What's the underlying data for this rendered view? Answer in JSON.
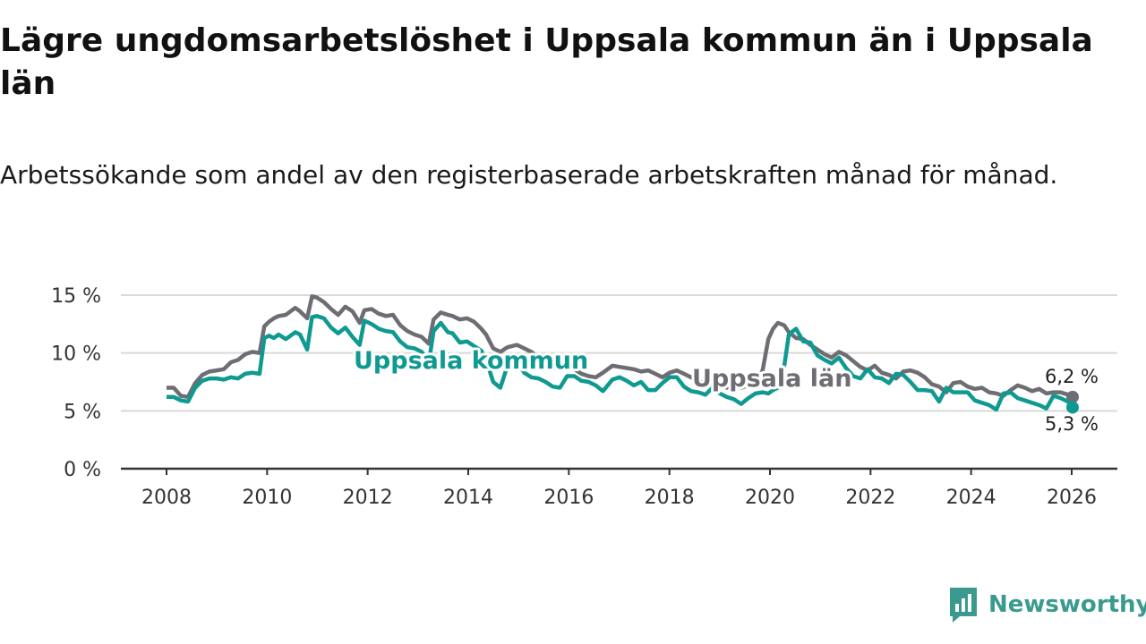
{
  "title": "Lägre ungdomsarbetslöshet i Uppsala kommun än i Uppsala län",
  "subtitle": "Arbetssökande som andel av den registerbaserade arbetskraften månad för månad.",
  "brand": {
    "name": "Newsworthy",
    "icon": "newsworthy-logo-icon",
    "color": "#3a9a8e"
  },
  "chart_data": {
    "type": "line",
    "title": "Lägre ungdomsarbetslöshet i Uppsala kommun än i Uppsala län",
    "xlabel": "",
    "ylabel": "",
    "xlim": [
      2007.1,
      2027.2
    ],
    "ylim": [
      0,
      15
    ],
    "yticks": [
      0,
      5,
      10,
      15
    ],
    "ytick_labels": [
      "0 %",
      "5 %",
      "10 %",
      "15 %"
    ],
    "xticks": [
      2008,
      2010,
      2012,
      2014,
      2016,
      2018,
      2020,
      2022,
      2024,
      2026
    ],
    "xtick_labels": [
      "2008",
      "2010",
      "2012",
      "2014",
      "2016",
      "2018",
      "2020",
      "2022",
      "2024",
      "2026"
    ],
    "grid": true,
    "series": [
      {
        "name": "Uppsala län",
        "label": "Uppsala län",
        "color": "#6e6d73",
        "end_label": "6,2 %",
        "points": [
          [
            2008.0,
            7.0
          ],
          [
            2008.15,
            7.0
          ],
          [
            2008.3,
            6.3
          ],
          [
            2008.45,
            6.2
          ],
          [
            2008.6,
            7.4
          ],
          [
            2008.75,
            8.1
          ],
          [
            2008.9,
            8.4
          ],
          [
            2009.05,
            8.5
          ],
          [
            2009.2,
            8.6
          ],
          [
            2009.35,
            9.2
          ],
          [
            2009.5,
            9.4
          ],
          [
            2009.65,
            9.9
          ],
          [
            2009.8,
            10.1
          ],
          [
            2009.95,
            10.0
          ],
          [
            2010.05,
            12.3
          ],
          [
            2010.15,
            12.7
          ],
          [
            2010.25,
            13.0
          ],
          [
            2010.35,
            13.2
          ],
          [
            2010.5,
            13.3
          ],
          [
            2010.6,
            13.6
          ],
          [
            2010.7,
            13.9
          ],
          [
            2010.8,
            13.6
          ],
          [
            2010.95,
            13.0
          ],
          [
            2011.05,
            14.9
          ],
          [
            2011.15,
            14.8
          ],
          [
            2011.3,
            14.4
          ],
          [
            2011.45,
            13.8
          ],
          [
            2011.6,
            13.3
          ],
          [
            2011.75,
            14.0
          ],
          [
            2011.9,
            13.6
          ],
          [
            2012.05,
            12.6
          ],
          [
            2012.15,
            13.7
          ],
          [
            2012.3,
            13.8
          ],
          [
            2012.45,
            13.4
          ],
          [
            2012.6,
            13.2
          ],
          [
            2012.75,
            13.3
          ],
          [
            2012.9,
            12.4
          ],
          [
            2013.05,
            11.9
          ],
          [
            2013.2,
            11.6
          ],
          [
            2013.35,
            11.4
          ],
          [
            2013.5,
            10.8
          ],
          [
            2013.6,
            12.9
          ],
          [
            2013.75,
            13.5
          ],
          [
            2013.9,
            13.3
          ],
          [
            2014.0,
            13.2
          ],
          [
            2014.15,
            12.9
          ],
          [
            2014.3,
            13.0
          ],
          [
            2014.45,
            12.7
          ],
          [
            2014.6,
            12.1
          ],
          [
            2014.7,
            11.6
          ],
          [
            2014.85,
            10.4
          ],
          [
            2015.0,
            10.1
          ],
          [
            2015.15,
            10.5
          ],
          [
            2015.35,
            10.7
          ],
          [
            2015.5,
            10.4
          ],
          [
            2015.65,
            10.1
          ],
          [
            2015.8,
            9.6
          ],
          [
            2015.95,
            9.2
          ],
          [
            2016.1,
            8.7
          ],
          [
            2016.25,
            8.8
          ],
          [
            2016.4,
            9.0
          ],
          [
            2016.55,
            8.6
          ],
          [
            2016.7,
            8.2
          ],
          [
            2016.85,
            8.0
          ],
          [
            2017.0,
            7.9
          ],
          [
            2017.15,
            8.3
          ],
          [
            2017.35,
            8.9
          ],
          [
            2017.5,
            8.8
          ],
          [
            2017.65,
            8.7
          ],
          [
            2017.8,
            8.6
          ],
          [
            2017.95,
            8.4
          ],
          [
            2018.1,
            8.5
          ],
          [
            2018.25,
            8.2
          ],
          [
            2018.4,
            7.9
          ],
          [
            2018.55,
            8.3
          ],
          [
            2018.7,
            8.5
          ],
          [
            2018.85,
            8.2
          ],
          [
            2019.0,
            7.9
          ],
          [
            2019.15,
            7.5
          ],
          [
            2019.3,
            7.5
          ],
          [
            2019.45,
            7.3
          ],
          [
            2019.6,
            7.2
          ],
          [
            2019.75,
            7.0
          ],
          [
            2019.9,
            7.2
          ],
          [
            2020.05,
            7.0
          ],
          [
            2020.2,
            7.2
          ],
          [
            2020.35,
            7.6
          ],
          [
            2020.5,
            8.5
          ],
          [
            2020.62,
            11.2
          ],
          [
            2020.72,
            12.1
          ],
          [
            2020.82,
            12.6
          ],
          [
            2020.95,
            12.4
          ],
          [
            2021.05,
            11.8
          ],
          [
            2021.2,
            11.3
          ],
          [
            2021.35,
            11.2
          ],
          [
            2021.5,
            10.7
          ],
          [
            2021.65,
            10.3
          ],
          [
            2021.8,
            9.9
          ],
          [
            2021.95,
            9.6
          ],
          [
            2022.1,
            10.1
          ],
          [
            2022.25,
            9.8
          ],
          [
            2022.4,
            9.3
          ],
          [
            2022.55,
            8.8
          ],
          [
            2022.7,
            8.5
          ],
          [
            2022.85,
            8.9
          ],
          [
            2023.0,
            8.3
          ],
          [
            2023.15,
            8.1
          ],
          [
            2023.3,
            7.8
          ],
          [
            2023.45,
            8.4
          ],
          [
            2023.6,
            8.5
          ],
          [
            2023.75,
            8.3
          ],
          [
            2023.9,
            7.9
          ],
          [
            2024.05,
            7.3
          ],
          [
            2024.2,
            7.1
          ],
          [
            2024.35,
            6.6
          ],
          [
            2024.5,
            7.4
          ],
          [
            2024.65,
            7.5
          ],
          [
            2024.8,
            7.1
          ],
          [
            2024.95,
            6.9
          ],
          [
            2025.1,
            7.0
          ],
          [
            2025.25,
            6.6
          ],
          [
            2025.4,
            6.5
          ],
          [
            2025.55,
            6.3
          ],
          [
            2025.7,
            6.8
          ],
          [
            2025.85,
            7.2
          ],
          [
            2026.0,
            7.0
          ],
          [
            2026.15,
            6.7
          ],
          [
            2026.3,
            6.9
          ],
          [
            2026.45,
            6.5
          ],
          [
            2026.6,
            6.6
          ],
          [
            2026.75,
            6.6
          ],
          [
            2026.9,
            6.4
          ],
          [
            2027.0,
            6.2
          ]
        ]
      },
      {
        "name": "Uppsala kommun",
        "label": "Uppsala kommun",
        "color": "#0f9a91",
        "end_label": "5,3 %",
        "points": [
          [
            2008.0,
            6.2
          ],
          [
            2008.15,
            6.2
          ],
          [
            2008.3,
            5.9
          ],
          [
            2008.45,
            5.8
          ],
          [
            2008.6,
            7.0
          ],
          [
            2008.75,
            7.6
          ],
          [
            2008.9,
            7.8
          ],
          [
            2009.05,
            7.8
          ],
          [
            2009.2,
            7.7
          ],
          [
            2009.35,
            7.9
          ],
          [
            2009.5,
            7.8
          ],
          [
            2009.65,
            8.2
          ],
          [
            2009.8,
            8.3
          ],
          [
            2009.95,
            8.2
          ],
          [
            2010.05,
            11.3
          ],
          [
            2010.15,
            11.5
          ],
          [
            2010.25,
            11.3
          ],
          [
            2010.35,
            11.6
          ],
          [
            2010.5,
            11.2
          ],
          [
            2010.6,
            11.5
          ],
          [
            2010.7,
            11.8
          ],
          [
            2010.8,
            11.6
          ],
          [
            2010.95,
            10.3
          ],
          [
            2011.05,
            13.1
          ],
          [
            2011.15,
            13.2
          ],
          [
            2011.3,
            13.0
          ],
          [
            2011.45,
            12.2
          ],
          [
            2011.6,
            11.7
          ],
          [
            2011.75,
            12.2
          ],
          [
            2011.9,
            11.4
          ],
          [
            2012.05,
            10.7
          ],
          [
            2012.15,
            12.8
          ],
          [
            2012.3,
            12.5
          ],
          [
            2012.45,
            12.1
          ],
          [
            2012.6,
            11.9
          ],
          [
            2012.75,
            11.8
          ],
          [
            2012.9,
            11.0
          ],
          [
            2013.05,
            10.5
          ],
          [
            2013.2,
            10.4
          ],
          [
            2013.35,
            10.1
          ],
          [
            2013.5,
            9.1
          ],
          [
            2013.6,
            11.9
          ],
          [
            2013.75,
            12.6
          ],
          [
            2013.9,
            11.8
          ],
          [
            2014.0,
            11.7
          ],
          [
            2014.15,
            10.9
          ],
          [
            2014.3,
            11.0
          ],
          [
            2014.45,
            10.6
          ],
          [
            2014.6,
            10.2
          ],
          [
            2014.7,
            9.4
          ],
          [
            2014.85,
            7.5
          ],
          [
            2015.0,
            7.0
          ],
          [
            2015.15,
            8.9
          ],
          [
            2015.35,
            9.3
          ],
          [
            2015.5,
            8.3
          ],
          [
            2015.65,
            7.9
          ],
          [
            2015.8,
            7.8
          ],
          [
            2015.95,
            7.5
          ],
          [
            2016.1,
            7.1
          ],
          [
            2016.25,
            7.0
          ],
          [
            2016.4,
            8.0
          ],
          [
            2016.55,
            8.0
          ],
          [
            2016.7,
            7.6
          ],
          [
            2016.85,
            7.5
          ],
          [
            2017.0,
            7.2
          ],
          [
            2017.15,
            6.7
          ],
          [
            2017.35,
            7.7
          ],
          [
            2017.5,
            7.9
          ],
          [
            2017.65,
            7.6
          ],
          [
            2017.8,
            7.2
          ],
          [
            2017.95,
            7.5
          ],
          [
            2018.1,
            6.8
          ],
          [
            2018.25,
            6.8
          ],
          [
            2018.4,
            7.4
          ],
          [
            2018.55,
            7.9
          ],
          [
            2018.7,
            7.9
          ],
          [
            2018.85,
            7.1
          ],
          [
            2019.0,
            6.7
          ],
          [
            2019.15,
            6.6
          ],
          [
            2019.3,
            6.4
          ],
          [
            2019.45,
            7.0
          ],
          [
            2019.6,
            6.5
          ],
          [
            2019.75,
            6.2
          ],
          [
            2019.9,
            6.0
          ],
          [
            2020.05,
            5.6
          ],
          [
            2020.2,
            6.1
          ],
          [
            2020.35,
            6.5
          ],
          [
            2020.5,
            6.6
          ],
          [
            2020.62,
            6.5
          ],
          [
            2020.72,
            6.8
          ],
          [
            2020.82,
            7.0
          ],
          [
            2020.95,
            8.8
          ],
          [
            2021.05,
            11.6
          ],
          [
            2021.2,
            12.1
          ],
          [
            2021.35,
            11.0
          ],
          [
            2021.5,
            10.9
          ],
          [
            2021.65,
            9.8
          ],
          [
            2021.8,
            9.4
          ],
          [
            2021.95,
            9.1
          ],
          [
            2022.1,
            9.6
          ],
          [
            2022.25,
            8.7
          ],
          [
            2022.4,
            8.0
          ],
          [
            2022.55,
            7.8
          ],
          [
            2022.7,
            8.6
          ],
          [
            2022.85,
            7.9
          ],
          [
            2023.0,
            7.8
          ],
          [
            2023.15,
            7.4
          ],
          [
            2023.3,
            8.2
          ],
          [
            2023.45,
            8.1
          ],
          [
            2023.6,
            7.5
          ],
          [
            2023.75,
            6.8
          ],
          [
            2023.9,
            6.8
          ],
          [
            2024.05,
            6.7
          ],
          [
            2024.2,
            5.8
          ],
          [
            2024.35,
            7.0
          ],
          [
            2024.5,
            6.6
          ],
          [
            2024.65,
            6.6
          ],
          [
            2024.8,
            6.6
          ],
          [
            2024.95,
            5.9
          ],
          [
            2025.1,
            5.7
          ],
          [
            2025.25,
            5.5
          ],
          [
            2025.4,
            5.1
          ],
          [
            2025.55,
            6.5
          ],
          [
            2025.7,
            6.6
          ],
          [
            2025.85,
            6.1
          ],
          [
            2026.0,
            5.9
          ],
          [
            2026.15,
            5.7
          ],
          [
            2026.3,
            5.5
          ],
          [
            2026.45,
            5.2
          ],
          [
            2026.6,
            6.3
          ],
          [
            2026.75,
            6.1
          ],
          [
            2026.9,
            5.8
          ],
          [
            2027.0,
            5.3
          ]
        ]
      }
    ]
  }
}
